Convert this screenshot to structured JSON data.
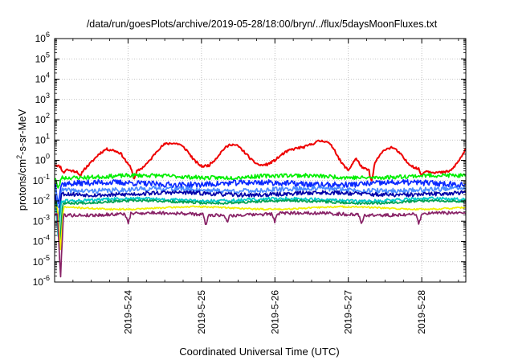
{
  "chart_data": {
    "type": "line",
    "title": "/data/run/goesPlots/archive/2019-05-28/18:00/bryn/../flux/5daysMoonFluxes.txt",
    "xlabel": "Coordinated Universal Time (UTC)",
    "ylabel": {
      "pre": "protons/cm",
      "sup": "2",
      "post": "-s-sr-MeV"
    },
    "y_scale": "log",
    "ylim_exp": [
      -6,
      6
    ],
    "y_ticks": [
      {
        "base": "10",
        "exp": "-6"
      },
      {
        "base": "10",
        "exp": "-5"
      },
      {
        "base": "10",
        "exp": "-4"
      },
      {
        "base": "10",
        "exp": "-3"
      },
      {
        "base": "10",
        "exp": "-2"
      },
      {
        "base": "10",
        "exp": "-1"
      },
      {
        "base": "10",
        "exp": "0"
      },
      {
        "base": "10",
        "exp": "1"
      },
      {
        "base": "10",
        "exp": "2"
      },
      {
        "base": "10",
        "exp": "3"
      },
      {
        "base": "10",
        "exp": "4"
      },
      {
        "base": "10",
        "exp": "5"
      },
      {
        "base": "10",
        "exp": "6"
      }
    ],
    "xlim_days": [
      0,
      5.6
    ],
    "x_ticks": [
      {
        "label": "2019-5-24",
        "day": 1
      },
      {
        "label": "2019-5-25",
        "day": 2
      },
      {
        "label": "2019-5-26",
        "day": 3
      },
      {
        "label": "2019-5-27",
        "day": 4
      },
      {
        "label": "2019-5-28",
        "day": 5
      }
    ],
    "grid": true,
    "series": [
      {
        "color": "#ee0000",
        "base": 0.15,
        "amp": 0.55,
        "noise": 0.06,
        "seed": 11,
        "dips": [
          [
            0.12,
            0.25
          ],
          [
            0.35,
            0.35
          ],
          [
            1.08,
            0.4
          ],
          [
            4.32,
            0.7
          ],
          [
            5.0,
            0.25
          ]
        ],
        "x": [
          0,
          0.1,
          0.2,
          0.3,
          0.4,
          0.5,
          0.6,
          0.7,
          0.8,
          0.9,
          1.0,
          1.1,
          1.2,
          1.3,
          1.4,
          1.5,
          1.6,
          1.7,
          1.8,
          1.9,
          2.0,
          2.1,
          2.2,
          2.3,
          2.4,
          2.5,
          2.6,
          2.7,
          2.8,
          2.9,
          3.0,
          3.1,
          3.2,
          3.3,
          3.4,
          3.5,
          3.6,
          3.7,
          3.8,
          3.9,
          4.0,
          4.1,
          4.2,
          4.3,
          4.4,
          4.5,
          4.6,
          4.7,
          4.8,
          4.9,
          5.0,
          5.1,
          5.2,
          5.3,
          5.4,
          5.5,
          5.6
        ],
        "y_exp": [
          -0.2,
          -0.35,
          -0.5,
          -0.55,
          -0.45,
          -0.1,
          0.3,
          0.55,
          0.5,
          0.35,
          -0.2,
          -0.6,
          -0.35,
          0.0,
          0.5,
          0.8,
          0.85,
          0.8,
          0.5,
          0.0,
          -0.3,
          -0.25,
          0.1,
          0.55,
          0.8,
          0.7,
          0.35,
          -0.05,
          -0.25,
          -0.2,
          0.0,
          0.3,
          0.5,
          0.6,
          0.65,
          0.8,
          0.95,
          0.95,
          0.6,
          -0.1,
          -0.5,
          0.1,
          -0.4,
          -0.5,
          0.1,
          0.55,
          0.65,
          0.35,
          -0.1,
          -0.35,
          -0.5,
          -0.55,
          -0.6,
          -0.6,
          -0.5,
          -0.05,
          0.55
        ]
      },
      {
        "color": "#00ee00",
        "y_exp": -0.8,
        "noise": 0.1,
        "seed": 23,
        "dips": [
          [
            0.05,
            0.6
          ]
        ]
      },
      {
        "color": "#0a28ff",
        "y_exp": -1.15,
        "noise": 0.14,
        "seed": 37,
        "dips": [
          [
            0.05,
            0.9
          ]
        ]
      },
      {
        "color": "#4a8cff",
        "y_exp": -1.45,
        "noise": 0.12,
        "seed": 41,
        "dips": [
          [
            0.05,
            1.0
          ]
        ]
      },
      {
        "color": "#0000aa",
        "y_exp": -1.65,
        "noise": 0.1,
        "seed": 53,
        "dips": [
          [
            0.05,
            1.5
          ]
        ]
      },
      {
        "color": "#00c8c8",
        "y_exp": -1.95,
        "noise": 0.08,
        "seed": 61,
        "dips": [
          [
            0.05,
            1.8
          ]
        ]
      },
      {
        "color": "#00a050",
        "y_exp": -2.05,
        "noise": 0.06,
        "seed": 67,
        "dips": [
          [
            0.07,
            2.0
          ]
        ]
      },
      {
        "color": "#f0f000",
        "y_exp": -2.35,
        "noise": 0.04,
        "seed": 71,
        "dips": [
          [
            0.08,
            2.2
          ]
        ]
      },
      {
        "color": "#882266",
        "y_exp": -2.65,
        "noise": 0.08,
        "seed": 79,
        "dips": [
          [
            0.08,
            3.1
          ],
          [
            1.0,
            0.5
          ],
          [
            2.06,
            0.5
          ],
          [
            2.35,
            0.3
          ],
          [
            3.0,
            0.4
          ],
          [
            4.18,
            0.4
          ],
          [
            4.96,
            0.5
          ]
        ]
      }
    ]
  }
}
